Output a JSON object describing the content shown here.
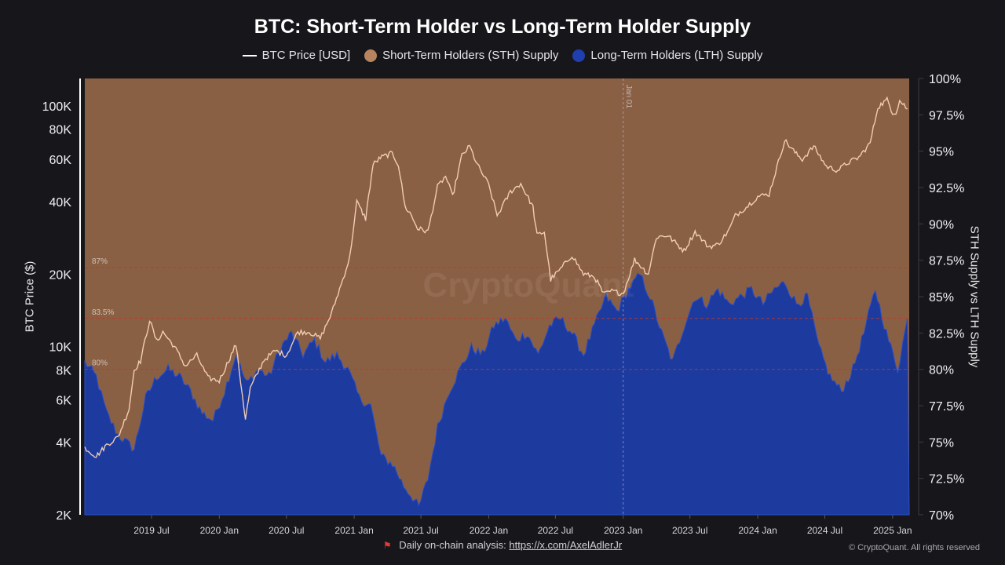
{
  "chart_data": {
    "type": "area",
    "title": "BTC: Short-Term Holder vs Long-Term Holder Supply",
    "ylabel_left": "BTC Price ($)",
    "ylabel_right": "STH Supply vs LTH Supply",
    "y_left_scale": "log",
    "y_left_range": [
      2000,
      130000
    ],
    "y_right_range": [
      70,
      100
    ],
    "y_left_ticks": [
      "2K",
      "4K",
      "6K",
      "8K",
      "10K",
      "20K",
      "40K",
      "60K",
      "80K",
      "100K"
    ],
    "y_left_tick_values": [
      2000,
      4000,
      6000,
      8000,
      10000,
      20000,
      40000,
      60000,
      80000,
      100000
    ],
    "y_right_ticks": [
      "70%",
      "72.5%",
      "75%",
      "77.5%",
      "80%",
      "82.5%",
      "85%",
      "87.5%",
      "90%",
      "92.5%",
      "95%",
      "97.5%",
      "100%"
    ],
    "y_right_tick_values": [
      70,
      72.5,
      75,
      77.5,
      80,
      82.5,
      85,
      87.5,
      90,
      92.5,
      95,
      97.5,
      100
    ],
    "x_ticks": [
      "2019 Jul",
      "2020 Jan",
      "2020 Jul",
      "2021 Jan",
      "2021 Jul",
      "2022 Jan",
      "2022 Jul",
      "2023 Jan",
      "2023 Jul",
      "2024 Jan",
      "2024 Jul",
      "2025 Jan"
    ],
    "x_range": [
      "2019-01-01",
      "2025-02-15"
    ],
    "legend_position": "top-center",
    "series": [
      {
        "name": "BTC Price [USD]",
        "type": "line",
        "axis": "left",
        "color": "#f6d3b8",
        "x": [
          "2019-01-01",
          "2019-02-01",
          "2019-03-01",
          "2019-04-01",
          "2019-05-01",
          "2019-05-15",
          "2019-06-01",
          "2019-06-26",
          "2019-07-15",
          "2019-08-01",
          "2019-09-01",
          "2019-10-01",
          "2019-11-01",
          "2019-12-01",
          "2020-01-01",
          "2020-02-15",
          "2020-03-12",
          "2020-03-25",
          "2020-05-01",
          "2020-06-01",
          "2020-07-01",
          "2020-08-01",
          "2020-09-01",
          "2020-10-01",
          "2020-11-01",
          "2020-12-01",
          "2020-12-20",
          "2021-01-08",
          "2021-02-01",
          "2021-02-21",
          "2021-03-13",
          "2021-04-14",
          "2021-05-01",
          "2021-05-19",
          "2021-06-01",
          "2021-06-22",
          "2021-07-20",
          "2021-08-15",
          "2021-09-06",
          "2021-09-25",
          "2021-10-20",
          "2021-11-10",
          "2021-12-01",
          "2022-01-01",
          "2022-01-24",
          "2022-03-01",
          "2022-03-29",
          "2022-05-01",
          "2022-05-12",
          "2022-06-01",
          "2022-06-18",
          "2022-07-15",
          "2022-08-15",
          "2022-09-15",
          "2022-10-15",
          "2022-11-09",
          "2022-12-01",
          "2023-01-01",
          "2023-02-01",
          "2023-03-10",
          "2023-04-01",
          "2023-05-01",
          "2023-06-15",
          "2023-07-15",
          "2023-08-20",
          "2023-09-15",
          "2023-10-15",
          "2023-11-01",
          "2023-12-01",
          "2024-01-01",
          "2024-02-01",
          "2024-03-14",
          "2024-04-15",
          "2024-05-01",
          "2024-06-01",
          "2024-07-05",
          "2024-08-05",
          "2024-09-01",
          "2024-10-01",
          "2024-11-01",
          "2024-11-22",
          "2024-12-17",
          "2025-01-01",
          "2025-01-10",
          "2025-01-20",
          "2025-02-01",
          "2025-02-10"
        ],
        "values": [
          3800,
          3500,
          3900,
          4200,
          5500,
          8000,
          8700,
          12900,
          10500,
          11500,
          10000,
          8300,
          9200,
          7400,
          7200,
          10200,
          5000,
          6700,
          8800,
          9600,
          9200,
          11500,
          11500,
          10800,
          13800,
          19000,
          23500,
          40000,
          34000,
          57000,
          61000,
          63500,
          57000,
          38000,
          36000,
          31000,
          30000,
          46000,
          51000,
          42000,
          62000,
          68000,
          57000,
          47000,
          35000,
          44000,
          47500,
          38000,
          29000,
          30000,
          19000,
          21000,
          24000,
          20000,
          19500,
          16500,
          17000,
          16600,
          23000,
          20000,
          28500,
          29000,
          25000,
          30000,
          26000,
          26500,
          30500,
          35000,
          38000,
          42000,
          43000,
          72000,
          63000,
          60000,
          68000,
          56000,
          54000,
          58000,
          61000,
          70000,
          99000,
          106000,
          94000,
          94000,
          105000,
          101000,
          97000
        ]
      },
      {
        "name": "Long-Term Holders (LTH) Supply",
        "type": "area",
        "axis": "right",
        "color": "#1d3a9e",
        "x": [
          "2019-01-01",
          "2019-02-01",
          "2019-03-01",
          "2019-04-01",
          "2019-05-15",
          "2019-06-15",
          "2019-07-15",
          "2019-08-15",
          "2019-09-15",
          "2019-10-15",
          "2019-11-15",
          "2019-12-15",
          "2020-01-15",
          "2020-02-15",
          "2020-03-15",
          "2020-04-15",
          "2020-05-15",
          "2020-06-15",
          "2020-07-15",
          "2020-08-15",
          "2020-09-15",
          "2020-10-15",
          "2020-11-15",
          "2020-12-15",
          "2021-01-15",
          "2021-02-15",
          "2021-03-15",
          "2021-04-15",
          "2021-05-15",
          "2021-06-15",
          "2021-06-25",
          "2021-07-20",
          "2021-08-15",
          "2021-09-15",
          "2021-10-15",
          "2021-11-15",
          "2021-12-15",
          "2022-01-15",
          "2022-02-15",
          "2022-03-15",
          "2022-04-15",
          "2022-05-15",
          "2022-06-15",
          "2022-07-15",
          "2022-08-15",
          "2022-09-15",
          "2022-10-15",
          "2022-11-15",
          "2022-12-15",
          "2023-01-15",
          "2023-02-15",
          "2023-03-15",
          "2023-04-15",
          "2023-05-15",
          "2023-06-15",
          "2023-07-15",
          "2023-08-15",
          "2023-09-15",
          "2023-10-15",
          "2023-11-15",
          "2023-12-15",
          "2024-01-15",
          "2024-02-15",
          "2024-03-15",
          "2024-04-15",
          "2024-05-15",
          "2024-06-15",
          "2024-07-15",
          "2024-08-15",
          "2024-09-15",
          "2024-10-15",
          "2024-11-15",
          "2024-12-15",
          "2025-01-15",
          "2025-02-10"
        ],
        "values": [
          80.5,
          79.5,
          77.0,
          75.5,
          74.5,
          78.0,
          79.5,
          80.0,
          79.5,
          78.5,
          77.0,
          76.5,
          78.5,
          81.0,
          79.0,
          80.0,
          79.5,
          81.5,
          82.5,
          81.0,
          82.0,
          80.5,
          81.0,
          80.0,
          78.0,
          77.5,
          74.0,
          73.5,
          72.0,
          71.0,
          70.5,
          72.5,
          76.0,
          78.5,
          80.0,
          81.5,
          81.0,
          83.0,
          83.5,
          82.0,
          82.5,
          81.0,
          83.0,
          83.5,
          82.5,
          81.0,
          83.0,
          85.0,
          84.0,
          85.5,
          86.5,
          85.0,
          82.5,
          80.5,
          83.0,
          85.0,
          84.5,
          85.5,
          84.5,
          85.0,
          85.5,
          84.5,
          85.5,
          86.0,
          84.5,
          85.0,
          81.5,
          79.5,
          78.5,
          80.0,
          82.5,
          85.5,
          82.5,
          80.0,
          83.5
        ]
      },
      {
        "name": "Short-Term Holders (STH) Supply",
        "type": "area",
        "axis": "right",
        "color": "#8a6044",
        "note_values": "STH = 100 - LTH (fills above LTH to 100%)"
      }
    ],
    "reference_lines": [
      {
        "label": "87%",
        "value": 87,
        "color": "#c0392b"
      },
      {
        "label": "83.5%",
        "value": 83.5,
        "color": "#c0392b"
      },
      {
        "label": "80%",
        "value": 80,
        "color": "#c0392b"
      }
    ],
    "annotations": [
      {
        "label": "Jan 01",
        "x": "2023-01-01"
      }
    ],
    "watermark": "CryptoQuant"
  },
  "legend": {
    "items": [
      {
        "label": "BTC Price [USD]",
        "kind": "line",
        "color": "#ffffff"
      },
      {
        "label": "Short-Term Holders (STH) Supply",
        "kind": "dot",
        "color": "#b8845f"
      },
      {
        "label": "Long-Term Holders (LTH) Supply",
        "kind": "dot",
        "color": "#1f3fb0"
      }
    ]
  },
  "footer": {
    "text": "Daily on-chain analysis:",
    "link": "https://x.com/AxelAdlerJr",
    "copyright": "© CryptoQuant. All rights reserved"
  }
}
